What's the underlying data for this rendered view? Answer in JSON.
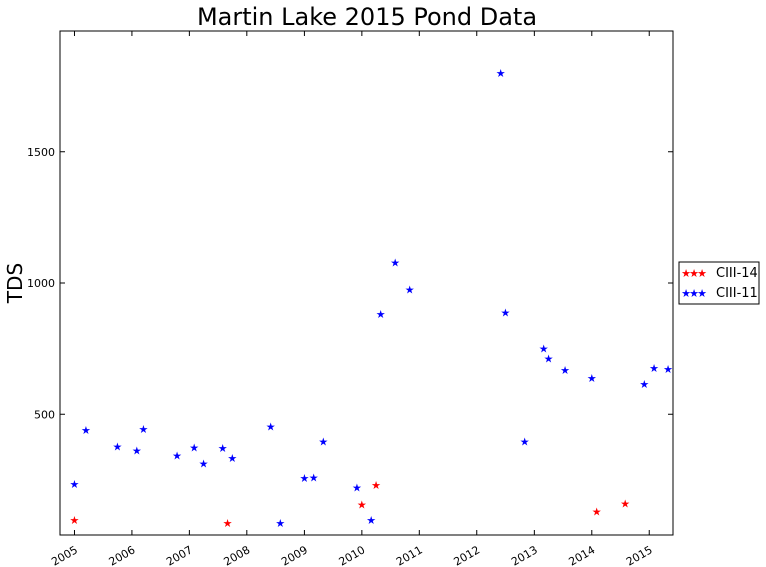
{
  "chart_data": {
    "type": "scatter",
    "title": "Martin Lake 2015 Pond Data",
    "xlabel": "",
    "ylabel": "TDS",
    "xlim": [
      "2004-10-01",
      "2015-06-01"
    ],
    "ylim": [
      40,
      1960
    ],
    "x_ticks": [
      "2005",
      "2006",
      "2007",
      "2008",
      "2009",
      "2010",
      "2011",
      "2012",
      "2013",
      "2014",
      "2015"
    ],
    "y_ticks": [
      500,
      1000,
      1500
    ],
    "grid": false,
    "legend_position": "outside right",
    "series": [
      {
        "name": "CIII-14",
        "color": "#ff0000",
        "marker": "star",
        "points": [
          {
            "x": "2005-01-01",
            "y": 97
          },
          {
            "x": "2007-09-01",
            "y": 85
          },
          {
            "x": "2010-01-01",
            "y": 157
          },
          {
            "x": "2010-04-01",
            "y": 230
          },
          {
            "x": "2014-02-01",
            "y": 130
          },
          {
            "x": "2014-08-01",
            "y": 160
          }
        ]
      },
      {
        "name": "CIII-11",
        "color": "#0000ff",
        "marker": "star",
        "points": [
          {
            "x": "2005-01-01",
            "y": 235
          },
          {
            "x": "2005-03-15",
            "y": 440
          },
          {
            "x": "2005-10-01",
            "y": 378
          },
          {
            "x": "2006-02-01",
            "y": 362
          },
          {
            "x": "2006-03-15",
            "y": 443
          },
          {
            "x": "2006-10-15",
            "y": 343
          },
          {
            "x": "2007-02-01",
            "y": 373
          },
          {
            "x": "2007-04-01",
            "y": 312
          },
          {
            "x": "2007-08-01",
            "y": 372
          },
          {
            "x": "2007-10-01",
            "y": 333
          },
          {
            "x": "2008-06-01",
            "y": 454
          },
          {
            "x": "2008-08-01",
            "y": 85
          },
          {
            "x": "2009-01-01",
            "y": 257
          },
          {
            "x": "2009-03-01",
            "y": 260
          },
          {
            "x": "2009-05-01",
            "y": 396
          },
          {
            "x": "2009-12-01",
            "y": 221
          },
          {
            "x": "2010-03-01",
            "y": 98
          },
          {
            "x": "2010-05-01",
            "y": 882
          },
          {
            "x": "2010-08-01",
            "y": 1078
          },
          {
            "x": "2010-11-01",
            "y": 975
          },
          {
            "x": "2012-06-01",
            "y": 1800
          },
          {
            "x": "2012-07-01",
            "y": 887
          },
          {
            "x": "2012-11-01",
            "y": 397
          },
          {
            "x": "2013-03-01",
            "y": 750
          },
          {
            "x": "2013-04-01",
            "y": 713
          },
          {
            "x": "2013-07-15",
            "y": 669
          },
          {
            "x": "2014-01-01",
            "y": 639
          },
          {
            "x": "2014-12-01",
            "y": 615
          },
          {
            "x": "2015-02-01",
            "y": 677
          },
          {
            "x": "2015-05-01",
            "y": 673
          }
        ]
      }
    ]
  }
}
